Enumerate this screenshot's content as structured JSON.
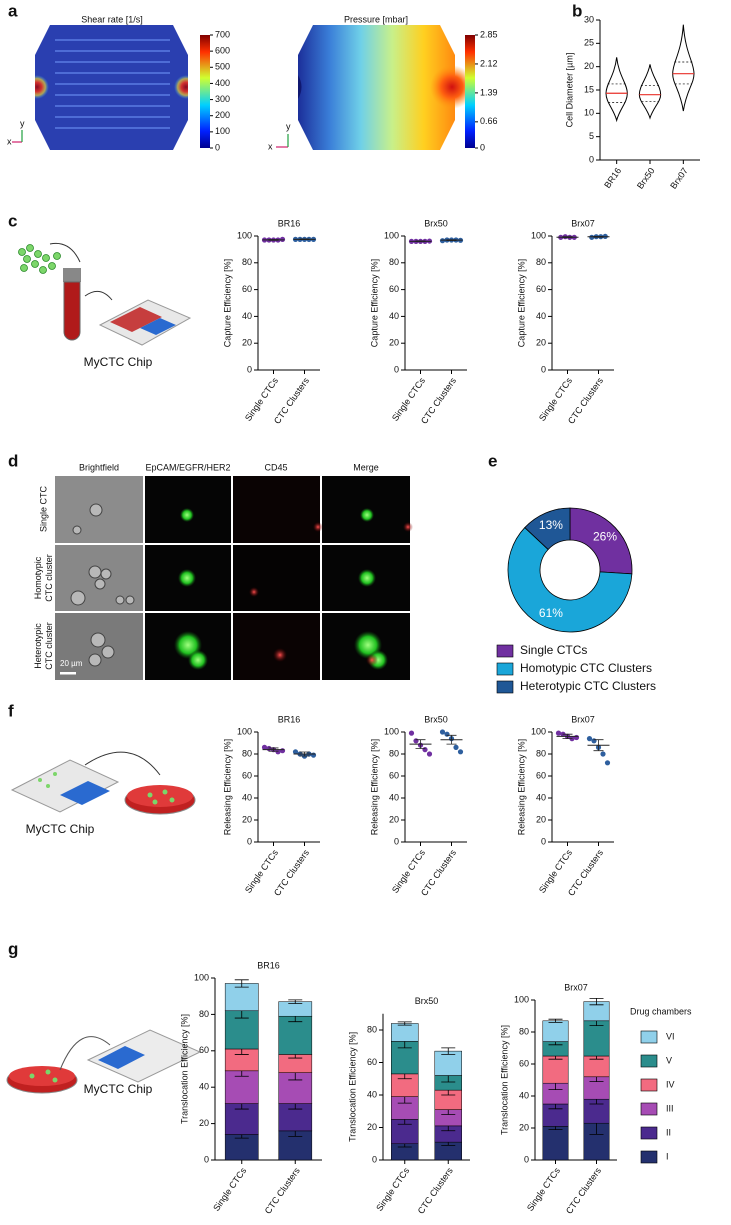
{
  "panel_labels": [
    "a",
    "b",
    "c",
    "d",
    "e",
    "f",
    "g"
  ],
  "panel_a": {
    "axis_labels": [
      "x",
      "y"
    ],
    "colorbars": [
      {
        "title": "Shear rate [1/s]",
        "lim": [
          0,
          700
        ],
        "ticks": [
          0,
          100,
          200,
          300,
          400,
          500,
          600,
          700
        ]
      },
      {
        "title": "Pressure [mbar]",
        "lim": [
          0,
          2.85
        ],
        "ticks": [
          0,
          0.66,
          1.39,
          2.12,
          2.85
        ]
      }
    ]
  },
  "panel_d": {
    "columns": [
      "Brightfield",
      "EpCAM/EGFR/HER2",
      "CD45",
      "Merge"
    ],
    "rows": [
      [
        "Single CTC"
      ],
      [
        "Homotypic",
        "CTC cluster"
      ],
      [
        "Heterotypic",
        "CTC cluster"
      ]
    ],
    "scale_bar": "20 µm"
  },
  "schematic_labels": [
    "MyCTC Chip",
    "MyCTC Chip",
    "MyCTC Chip"
  ],
  "panel_g": {
    "legend_title": "Drug chambers",
    "chambers": [
      {
        "name": "I",
        "color": "#24306e"
      },
      {
        "name": "II",
        "color": "#4b2a8e"
      },
      {
        "name": "III",
        "color": "#a64cb4"
      },
      {
        "name": "IV",
        "color": "#f26b80"
      },
      {
        "name": "V",
        "color": "#2b8d8c"
      },
      {
        "name": "VI",
        "color": "#90d0ea"
      }
    ]
  },
  "chart_data": [
    {
      "type": "violin",
      "ylabel": "Cell Diameter [µm]",
      "categories": [
        "BR16",
        "Brx50",
        "Brx07"
      ],
      "min": [
        8.5,
        9,
        10.5
      ],
      "q1": [
        12.3,
        12.5,
        16.3
      ],
      "median": [
        14.3,
        14,
        18.5
      ],
      "q3": [
        16.3,
        16,
        21
      ],
      "max": [
        22,
        20.5,
        29
      ],
      "color": "#000000",
      "median_color": "#e8302a",
      "ylim": [
        0,
        30
      ],
      "yticks": [
        0,
        5,
        10,
        15,
        20,
        25,
        30
      ]
    },
    {
      "type": "dot",
      "title": "BR16",
      "ylabel": "Capture Efficiency [%]",
      "categories": [
        "Single CTCs",
        "CTC Clusters"
      ],
      "colors": [
        "#7030a0",
        "#2e5f9e"
      ],
      "points": [
        [
          97,
          97,
          97,
          97,
          97.5
        ],
        [
          97.5,
          97.5,
          97.5,
          97.5,
          97.5
        ]
      ],
      "means": [
        97.1,
        97.5
      ],
      "errors": [
        0.3,
        0.2
      ],
      "ylim": [
        0,
        100
      ],
      "yticks": [
        0,
        20,
        40,
        60,
        80,
        100
      ]
    },
    {
      "type": "dot",
      "title": "Brx50",
      "ylabel": "Capture Efficiency [%]",
      "categories": [
        "Single CTCs",
        "CTC Clusters"
      ],
      "colors": [
        "#7030a0",
        "#2e5f9e"
      ],
      "points": [
        [
          96,
          96,
          96,
          96,
          96.2
        ],
        [
          96.5,
          97,
          97,
          97,
          96.8
        ]
      ],
      "means": [
        96,
        96.9
      ],
      "errors": [
        0.3,
        0.3
      ],
      "ylim": [
        0,
        100
      ],
      "yticks": [
        0,
        20,
        40,
        60,
        80,
        100
      ]
    },
    {
      "type": "dot",
      "title": "Brx07",
      "ylabel": "Capture Efficiency [%]",
      "categories": [
        "Single CTCs",
        "CTC Clusters"
      ],
      "colors": [
        "#7030a0",
        "#2e5f9e"
      ],
      "points": [
        [
          99,
          99.5,
          99,
          99
        ],
        [
          99,
          99.5,
          99.5,
          99.7
        ]
      ],
      "means": [
        99.1,
        99.4
      ],
      "errors": [
        0.4,
        0.3
      ],
      "ylim": [
        0,
        100
      ],
      "yticks": [
        0,
        20,
        40,
        60,
        80,
        100
      ]
    },
    {
      "type": "pie",
      "categories": [
        "Single CTCs",
        "Homotypic CTC Clusters",
        "Heterotypic CTC Clusters"
      ],
      "values": [
        26,
        61,
        13
      ],
      "value_labels": [
        "26%",
        "61%",
        "13%"
      ],
      "colors": [
        "#7030a0",
        "#1aa6d9",
        "#1f5796"
      ]
    },
    {
      "type": "dot",
      "title": "BR16",
      "ylabel": "Releasing Efficiency [%]",
      "categories": [
        "Single CTCs",
        "CTC Clusters"
      ],
      "colors": [
        "#7030a0",
        "#2e5f9e"
      ],
      "points": [
        [
          86,
          85,
          84,
          82,
          83
        ],
        [
          82,
          80,
          78,
          80,
          79
        ]
      ],
      "means": [
        84,
        80
      ],
      "errors": [
        1.5,
        1.8
      ],
      "ylim": [
        0,
        100
      ],
      "yticks": [
        0,
        20,
        40,
        60,
        80,
        100
      ]
    },
    {
      "type": "dot",
      "title": "Brx50",
      "ylabel": "Releasing Efficiency [%]",
      "categories": [
        "Single CTCs",
        "CTC Clusters"
      ],
      "colors": [
        "#7030a0",
        "#2e5f9e"
      ],
      "points": [
        [
          99,
          92,
          88,
          84,
          80
        ],
        [
          100,
          98,
          94,
          86,
          82
        ]
      ],
      "means": [
        89,
        93
      ],
      "errors": [
        4,
        4
      ],
      "ylim": [
        0,
        100
      ],
      "yticks": [
        0,
        20,
        40,
        60,
        80,
        100
      ]
    },
    {
      "type": "dot",
      "title": "Brx07",
      "ylabel": "Releasing Efficiency [%]",
      "categories": [
        "Single CTCs",
        "CTC Clusters"
      ],
      "colors": [
        "#7030a0",
        "#2e5f9e"
      ],
      "points": [
        [
          99,
          98,
          96,
          94,
          95
        ],
        [
          94,
          92,
          86,
          80,
          72
        ]
      ],
      "means": [
        96,
        88
      ],
      "errors": [
        2,
        5
      ],
      "ylim": [
        0,
        100
      ],
      "yticks": [
        0,
        20,
        40,
        60,
        80,
        100
      ]
    },
    {
      "type": "stacked_bar",
      "title": "BR16",
      "ylabel": "Translocation Efficiency [%]",
      "categories": [
        "Single CTCs",
        "CTC Clusters"
      ],
      "values": [
        [
          14,
          17,
          18,
          12,
          21,
          15
        ],
        [
          16,
          15,
          17,
          10,
          21,
          8
        ]
      ],
      "errors": [
        [
          2,
          3,
          3,
          3,
          4,
          2
        ],
        [
          3,
          3,
          4,
          2,
          3,
          1
        ]
      ],
      "ylim": [
        0,
        100
      ],
      "yticks": [
        0,
        20,
        40,
        60,
        80,
        100
      ]
    },
    {
      "type": "stacked_bar",
      "title": "Brx50",
      "ylabel": "Translocation Efficiency [%]",
      "categories": [
        "Single CTCs",
        "CTC Clusters"
      ],
      "values": [
        [
          10,
          15,
          14,
          14,
          20,
          11
        ],
        [
          11,
          10,
          10,
          12,
          9,
          15
        ]
      ],
      "errors": [
        [
          2,
          3,
          4,
          3,
          4,
          1
        ],
        [
          2,
          3,
          3,
          3,
          4,
          2
        ]
      ],
      "ylim": [
        0,
        90
      ],
      "yticks": [
        0,
        20,
        40,
        60,
        80
      ]
    },
    {
      "type": "stacked_bar",
      "title": "Brx07",
      "ylabel": "Translocation Efficiency [%]",
      "categories": [
        "Single CTCs",
        "CTC Clusters"
      ],
      "values": [
        [
          21,
          14,
          13,
          17,
          9,
          13
        ],
        [
          23,
          15,
          14,
          13,
          22,
          12
        ]
      ],
      "errors": [
        [
          2,
          3,
          4,
          2,
          2,
          1
        ],
        [
          7,
          3,
          3,
          2,
          3,
          2
        ]
      ],
      "ylim": [
        0,
        100
      ],
      "yticks": [
        0,
        20,
        40,
        60,
        80,
        100
      ]
    }
  ]
}
